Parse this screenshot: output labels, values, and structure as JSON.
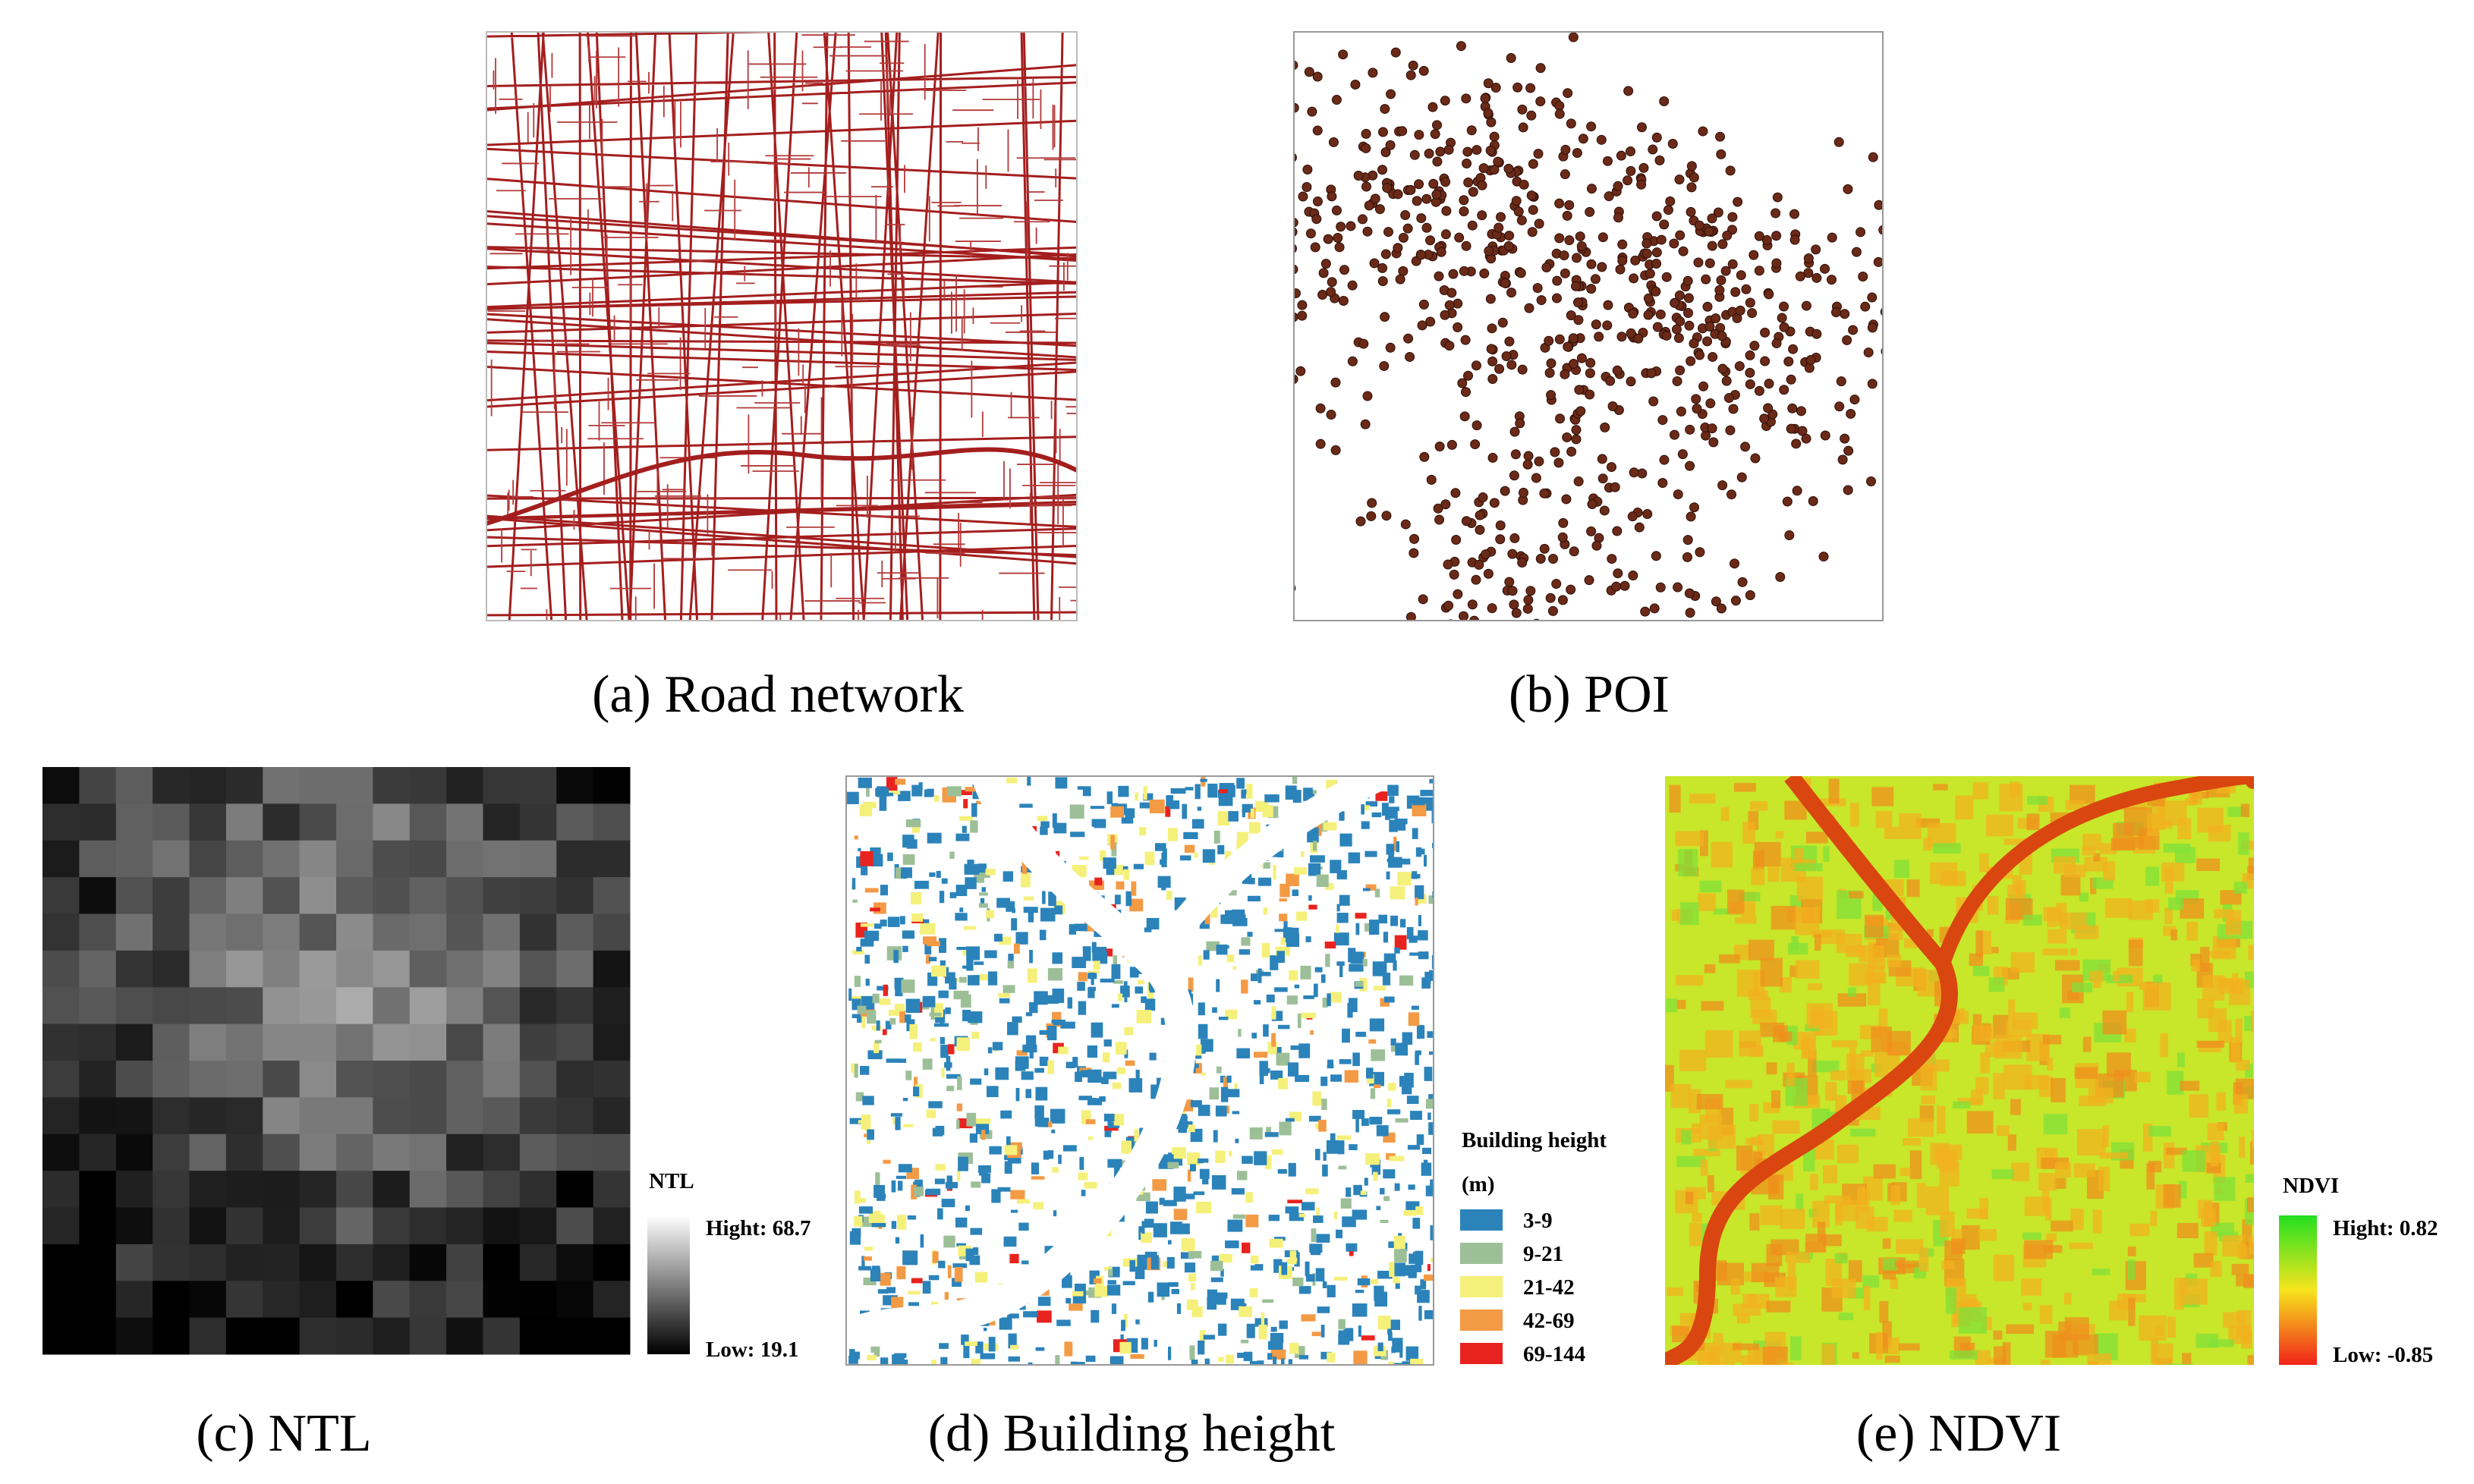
{
  "panels": [
    {
      "caption": "(a) Road network"
    },
    {
      "caption": "(b) POI"
    },
    {
      "caption": "(c) NTL",
      "legend": {
        "title": "NTL",
        "high": "Hight: 68.7",
        "low": "Low: 19.1"
      }
    },
    {
      "caption": "(d) Building height",
      "legend": {
        "title": "Building height",
        "unit": "(m)",
        "classes": [
          {
            "label": "3-9",
            "color": "#2b83ba"
          },
          {
            "label": "9-21",
            "color": "#9dbf98"
          },
          {
            "label": "21-42",
            "color": "#f5f07a"
          },
          {
            "label": "42-69",
            "color": "#f39a45"
          },
          {
            "label": "69-144",
            "color": "#e8231f"
          }
        ]
      }
    },
    {
      "caption": "(e) NDVI",
      "legend": {
        "title": "NDVI",
        "high": "Hight: 0.82",
        "low": "Low: -0.85"
      }
    }
  ]
}
